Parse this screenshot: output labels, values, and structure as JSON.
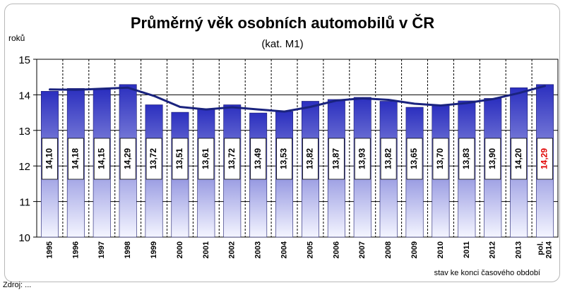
{
  "footer_text": "Zdroj: ...",
  "chart_data": {
    "type": "bar",
    "title": "Průměrný věk osobních automobilů v ČR",
    "subtitle": "(kat. M1)",
    "ylabel": "roků",
    "note": "stav ke konci časového období",
    "categories": [
      "1995",
      "1996",
      "1997",
      "1998",
      "1999",
      "2000",
      "2001",
      "2002",
      "2003",
      "2004",
      "2005",
      "2006",
      "2007",
      "2008",
      "2009",
      "2010",
      "2011",
      "2012",
      "2013",
      "pol. 2014"
    ],
    "values": [
      14.1,
      14.18,
      14.15,
      14.29,
      13.72,
      13.51,
      13.61,
      13.72,
      13.49,
      13.53,
      13.82,
      13.87,
      13.93,
      13.82,
      13.65,
      13.7,
      13.83,
      13.9,
      14.2,
      14.29
    ],
    "value_labels": [
      "14,10",
      "14,18",
      "14,15",
      "14,29",
      "13,72",
      "13,51",
      "13,61",
      "13,72",
      "13,49",
      "13,53",
      "13,82",
      "13,87",
      "13,93",
      "13,82",
      "13,65",
      "13,70",
      "13,83",
      "13,90",
      "14,20",
      "14,29"
    ],
    "trend_line": [
      14.15,
      14.14,
      14.17,
      14.2,
      13.97,
      13.66,
      13.59,
      13.65,
      13.59,
      13.53,
      13.66,
      13.84,
      13.9,
      13.86,
      13.75,
      13.7,
      13.77,
      13.88,
      14.05,
      14.25
    ],
    "ylim": [
      10,
      15
    ],
    "yticks": [
      "10",
      "11",
      "12",
      "13",
      "14",
      "15"
    ],
    "grid": true,
    "highlight_last_label": true,
    "colors": {
      "bar_top": "#2b2fbf",
      "bar_bottom": "#f4f5ff",
      "trend": "#1a237e",
      "plot_bg": "#ffffff",
      "highlight": "#e00000"
    }
  }
}
